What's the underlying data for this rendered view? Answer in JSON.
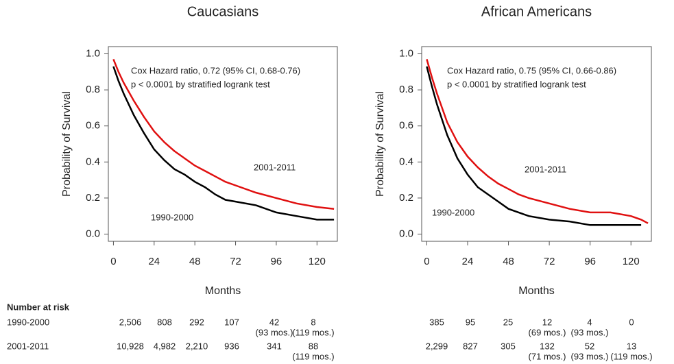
{
  "chart_data": [
    {
      "type": "line",
      "title": "Caucasians",
      "xlabel": "Months",
      "ylabel": "Probability of Survival",
      "annotations": [
        "Cox Hazard ratio, 0.72 (95% CI, 0.68-0.76)",
        "p < 0.0001 by stratified logrank test"
      ],
      "x": [
        0,
        3,
        6,
        12,
        18,
        24,
        30,
        36,
        42,
        48,
        54,
        60,
        66,
        72,
        84,
        96,
        108,
        120,
        130
      ],
      "series": [
        {
          "name": "1990-2000",
          "color": "#000000",
          "values": [
            0.93,
            0.85,
            0.78,
            0.66,
            0.56,
            0.47,
            0.41,
            0.36,
            0.33,
            0.29,
            0.26,
            0.22,
            0.19,
            0.18,
            0.16,
            0.12,
            0.1,
            0.08,
            0.08
          ]
        },
        {
          "name": "2001-2011",
          "color": "#e01010",
          "values": [
            0.97,
            0.9,
            0.84,
            0.74,
            0.65,
            0.57,
            0.51,
            0.46,
            0.42,
            0.38,
            0.35,
            0.32,
            0.29,
            0.27,
            0.23,
            0.2,
            0.17,
            0.15,
            0.14
          ]
        }
      ],
      "xlim": [
        -3,
        132
      ],
      "ylim": [
        -0.04,
        1.04
      ],
      "xticks": [
        0,
        24,
        48,
        72,
        96,
        120
      ],
      "yticks": [
        {
          "value": 0,
          "label": "0.0"
        },
        {
          "value": 0.2,
          "label": "0.2"
        },
        {
          "value": 0.4,
          "label": "0.4"
        },
        {
          "value": 0.6,
          "label": "0.6"
        },
        {
          "value": 0.8,
          "label": "0.8"
        },
        {
          "value": 1,
          "label": "1.0"
        }
      ]
    },
    {
      "type": "line",
      "title": "African Americans",
      "xlabel": "Months",
      "ylabel": "Probability of Survival",
      "annotations": [
        "Cox Hazard ratio, 0.75 (95% CI, 0.66-0.86)",
        "p < 0.0001 by stratified logrank test"
      ],
      "x": [
        0,
        3,
        6,
        12,
        18,
        24,
        30,
        36,
        42,
        48,
        54,
        60,
        72,
        84,
        96,
        108,
        120,
        126,
        130
      ],
      "series": [
        {
          "name": "1990-2000",
          "color": "#000000",
          "values": [
            0.93,
            0.82,
            0.72,
            0.55,
            0.42,
            0.33,
            0.26,
            0.22,
            0.18,
            0.14,
            0.12,
            0.1,
            0.08,
            0.07,
            0.05,
            0.05,
            0.05,
            0.05,
            null
          ]
        },
        {
          "name": "2001-2011",
          "color": "#e01010",
          "values": [
            0.97,
            0.87,
            0.78,
            0.62,
            0.51,
            0.43,
            0.37,
            0.32,
            0.28,
            0.25,
            0.22,
            0.2,
            0.17,
            0.14,
            0.12,
            0.12,
            0.1,
            0.08,
            0.06
          ]
        }
      ],
      "xlim": [
        -3,
        132
      ],
      "ylim": [
        -0.04,
        1.04
      ],
      "xticks": [
        0,
        24,
        48,
        72,
        96,
        120
      ],
      "yticks": [
        {
          "value": 0,
          "label": "0.0"
        },
        {
          "value": 0.2,
          "label": "0.2"
        },
        {
          "value": 0.4,
          "label": "0.4"
        },
        {
          "value": 0.6,
          "label": "0.6"
        },
        {
          "value": 0.8,
          "label": "0.8"
        },
        {
          "value": 1,
          "label": "1.0"
        }
      ]
    }
  ],
  "risk_table": {
    "title": "Number at risk",
    "rows": [
      {
        "label": "1990-2000",
        "left": [
          {
            "n": "2,506"
          },
          {
            "n": "808"
          },
          {
            "n": "292"
          },
          {
            "n": "107"
          },
          {
            "n": "42",
            "note": "(93 mos.)"
          },
          {
            "n": "8",
            "note": "(119 mos.)"
          }
        ],
        "right": [
          {
            "n": "385"
          },
          {
            "n": "95"
          },
          {
            "n": "25"
          },
          {
            "n": "12",
            "note": "(69 mos.)"
          },
          {
            "n": "4",
            "note": "(93 mos.)"
          },
          {
            "n": "0"
          }
        ]
      },
      {
        "label": "2001-2011",
        "left": [
          {
            "n": "10,928"
          },
          {
            "n": "4,982"
          },
          {
            "n": "2,210"
          },
          {
            "n": "936"
          },
          {
            "n": "341"
          },
          {
            "n": "88",
            "note": "(119 mos.)"
          }
        ],
        "right": [
          {
            "n": "2,299"
          },
          {
            "n": "827"
          },
          {
            "n": "305"
          },
          {
            "n": "132",
            "note": "(71 mos.)"
          },
          {
            "n": "52",
            "note": "(93 mos.)"
          },
          {
            "n": "13",
            "note": "(119 mos.)"
          }
        ]
      }
    ]
  }
}
